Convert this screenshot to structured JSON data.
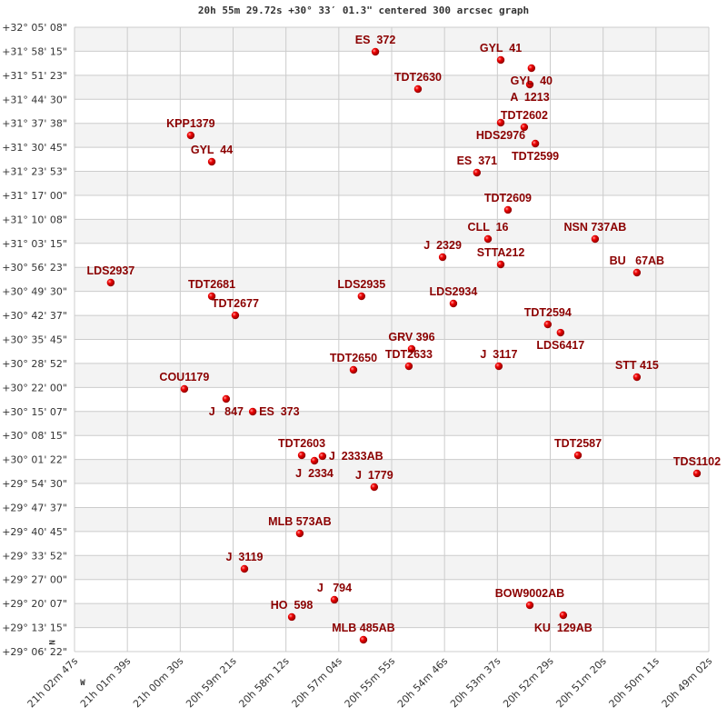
{
  "chart_data": {
    "type": "scatter",
    "title": "20h 55m 29.72s +30° 33′ 01.3\" centered 300 arcsec graph",
    "xlabel": "",
    "ylabel": "",
    "xlim_ra_hours": [
      21.046389,
      20.817222
    ],
    "ylim_dec_deg": [
      29.106111,
      32.085556
    ],
    "grid": true,
    "x_reversed": true,
    "compass": {
      "north": "N",
      "west": "W"
    },
    "colors": {
      "label": "#8b0000",
      "marker": "#e00000",
      "band": "#f3f3f3",
      "grid": "#cccccc"
    },
    "x_tick_labels": [
      "21h 02m 47s",
      "21h 01m 39s",
      "21h 00m 30s",
      "20h 59m 21s",
      "20h 58m 12s",
      "20h 57m 04s",
      "20h 55m 55s",
      "20h 54m 46s",
      "20h 53m 37s",
      "20h 52m 29s",
      "20h 51m 20s",
      "20h 50m 11s",
      "20h 49m 02s"
    ],
    "y_tick_labels": [
      "+32° 05' 08\"",
      "+31° 58' 15\"",
      "+31° 51' 23\"",
      "+31° 44' 30\"",
      "+31° 37' 38\"",
      "+31° 30' 45\"",
      "+31° 23' 53\"",
      "+31° 17' 00\"",
      "+31° 10' 08\"",
      "+31° 03' 15\"",
      "+30° 56' 23\"",
      "+30° 49' 30\"",
      "+30° 42' 37\"",
      "+30° 35' 45\"",
      "+30° 28' 52\"",
      "+30° 22' 00\"",
      "+30° 15' 07\"",
      "+30° 08' 15\"",
      "+30° 01' 22\"",
      "+29° 54' 30\"",
      "+29° 47' 37\"",
      "+29° 40' 45\"",
      "+29° 33' 52\"",
      "+29° 27' 00\"",
      "+29° 20' 07\"",
      "+29° 13' 15\"",
      "+29° 06' 22\""
    ],
    "points": [
      {
        "name": "ES  372",
        "ra": 20.9377,
        "dec": 31.9685
      },
      {
        "name": "GYL  41",
        "ra": 20.8924,
        "dec": 31.9294
      },
      {
        "name": "GYL  40",
        "ra": 20.8813,
        "dec": 31.8904
      },
      {
        "name": "A  1213",
        "ra": 20.8819,
        "dec": 31.8123
      },
      {
        "name": "TDT2630",
        "ra": 20.9223,
        "dec": 31.7907
      },
      {
        "name": "HDS2976",
        "ra": 20.8924,
        "dec": 31.6302
      },
      {
        "name": "TDT2602",
        "ra": 20.8839,
        "dec": 31.6085
      },
      {
        "name": "TDT2599",
        "ra": 20.8799,
        "dec": 31.5304
      },
      {
        "name": "KPP1379",
        "ra": 21.0044,
        "dec": 31.5695
      },
      {
        "name": "GYL  44",
        "ra": 20.9968,
        "dec": 31.4437
      },
      {
        "name": "ES  371",
        "ra": 20.901,
        "dec": 31.3917
      },
      {
        "name": "TDT2609",
        "ra": 20.8898,
        "dec": 31.2139
      },
      {
        "name": "CLL  16",
        "ra": 20.897,
        "dec": 31.0751
      },
      {
        "name": "NSN 737AB",
        "ra": 20.8583,
        "dec": 31.0751
      },
      {
        "name": "J  2329",
        "ra": 20.9134,
        "dec": 30.9883
      },
      {
        "name": "STTA212",
        "ra": 20.8924,
        "dec": 30.9536
      },
      {
        "name": "BU   67AB",
        "ra": 20.8432,
        "dec": 30.9146
      },
      {
        "name": "LDS2937",
        "ra": 21.0333,
        "dec": 30.8669
      },
      {
        "name": "TDT2681",
        "ra": 20.9968,
        "dec": 30.8018
      },
      {
        "name": "LDS2935",
        "ra": 20.9427,
        "dec": 30.8018
      },
      {
        "name": "LDS2934",
        "ra": 20.9095,
        "dec": 30.7671
      },
      {
        "name": "TDT2677",
        "ra": 20.9883,
        "dec": 30.7108
      },
      {
        "name": "TDT2594",
        "ra": 20.8754,
        "dec": 30.6674
      },
      {
        "name": "LDS6417",
        "ra": 20.8708,
        "dec": 30.6283
      },
      {
        "name": "GRV 396",
        "ra": 20.9246,
        "dec": 30.5503
      },
      {
        "name": "TDT2633",
        "ra": 20.9256,
        "dec": 30.4679
      },
      {
        "name": "J  3117",
        "ra": 20.8931,
        "dec": 30.4679
      },
      {
        "name": "TDT2650",
        "ra": 20.9456,
        "dec": 30.4505
      },
      {
        "name": "STT 415",
        "ra": 20.8432,
        "dec": 30.4158
      },
      {
        "name": "COU1179",
        "ra": 21.0067,
        "dec": 30.3595
      },
      {
        "name": "J   847",
        "ra": 20.9916,
        "dec": 30.3118
      },
      {
        "name": "ES  373",
        "ra": 20.982,
        "dec": 30.251
      },
      {
        "name": "TDT2587",
        "ra": 20.8645,
        "dec": 30.0429
      },
      {
        "name": "TDT2603",
        "ra": 20.9643,
        "dec": 30.0429
      },
      {
        "name": "J  2334",
        "ra": 20.9597,
        "dec": 30.0169
      },
      {
        "name": "J  2333AB",
        "ra": 20.9568,
        "dec": 30.0386
      },
      {
        "name": "J  1779",
        "ra": 20.9381,
        "dec": 29.8911
      },
      {
        "name": "TDS1102",
        "ra": 20.8215,
        "dec": 29.9562
      },
      {
        "name": "MLB 573AB",
        "ra": 20.965,
        "dec": 29.6699
      },
      {
        "name": "J  3119",
        "ra": 20.985,
        "dec": 29.5008
      },
      {
        "name": "J   794",
        "ra": 20.9525,
        "dec": 29.3534
      },
      {
        "name": "HO  598",
        "ra": 20.9679,
        "dec": 29.271
      },
      {
        "name": "BOW9002AB",
        "ra": 20.8819,
        "dec": 29.3273
      },
      {
        "name": "KU  129AB",
        "ra": 20.8698,
        "dec": 29.2796
      },
      {
        "name": "MLB 485AB",
        "ra": 20.942,
        "dec": 29.1625
      }
    ]
  }
}
